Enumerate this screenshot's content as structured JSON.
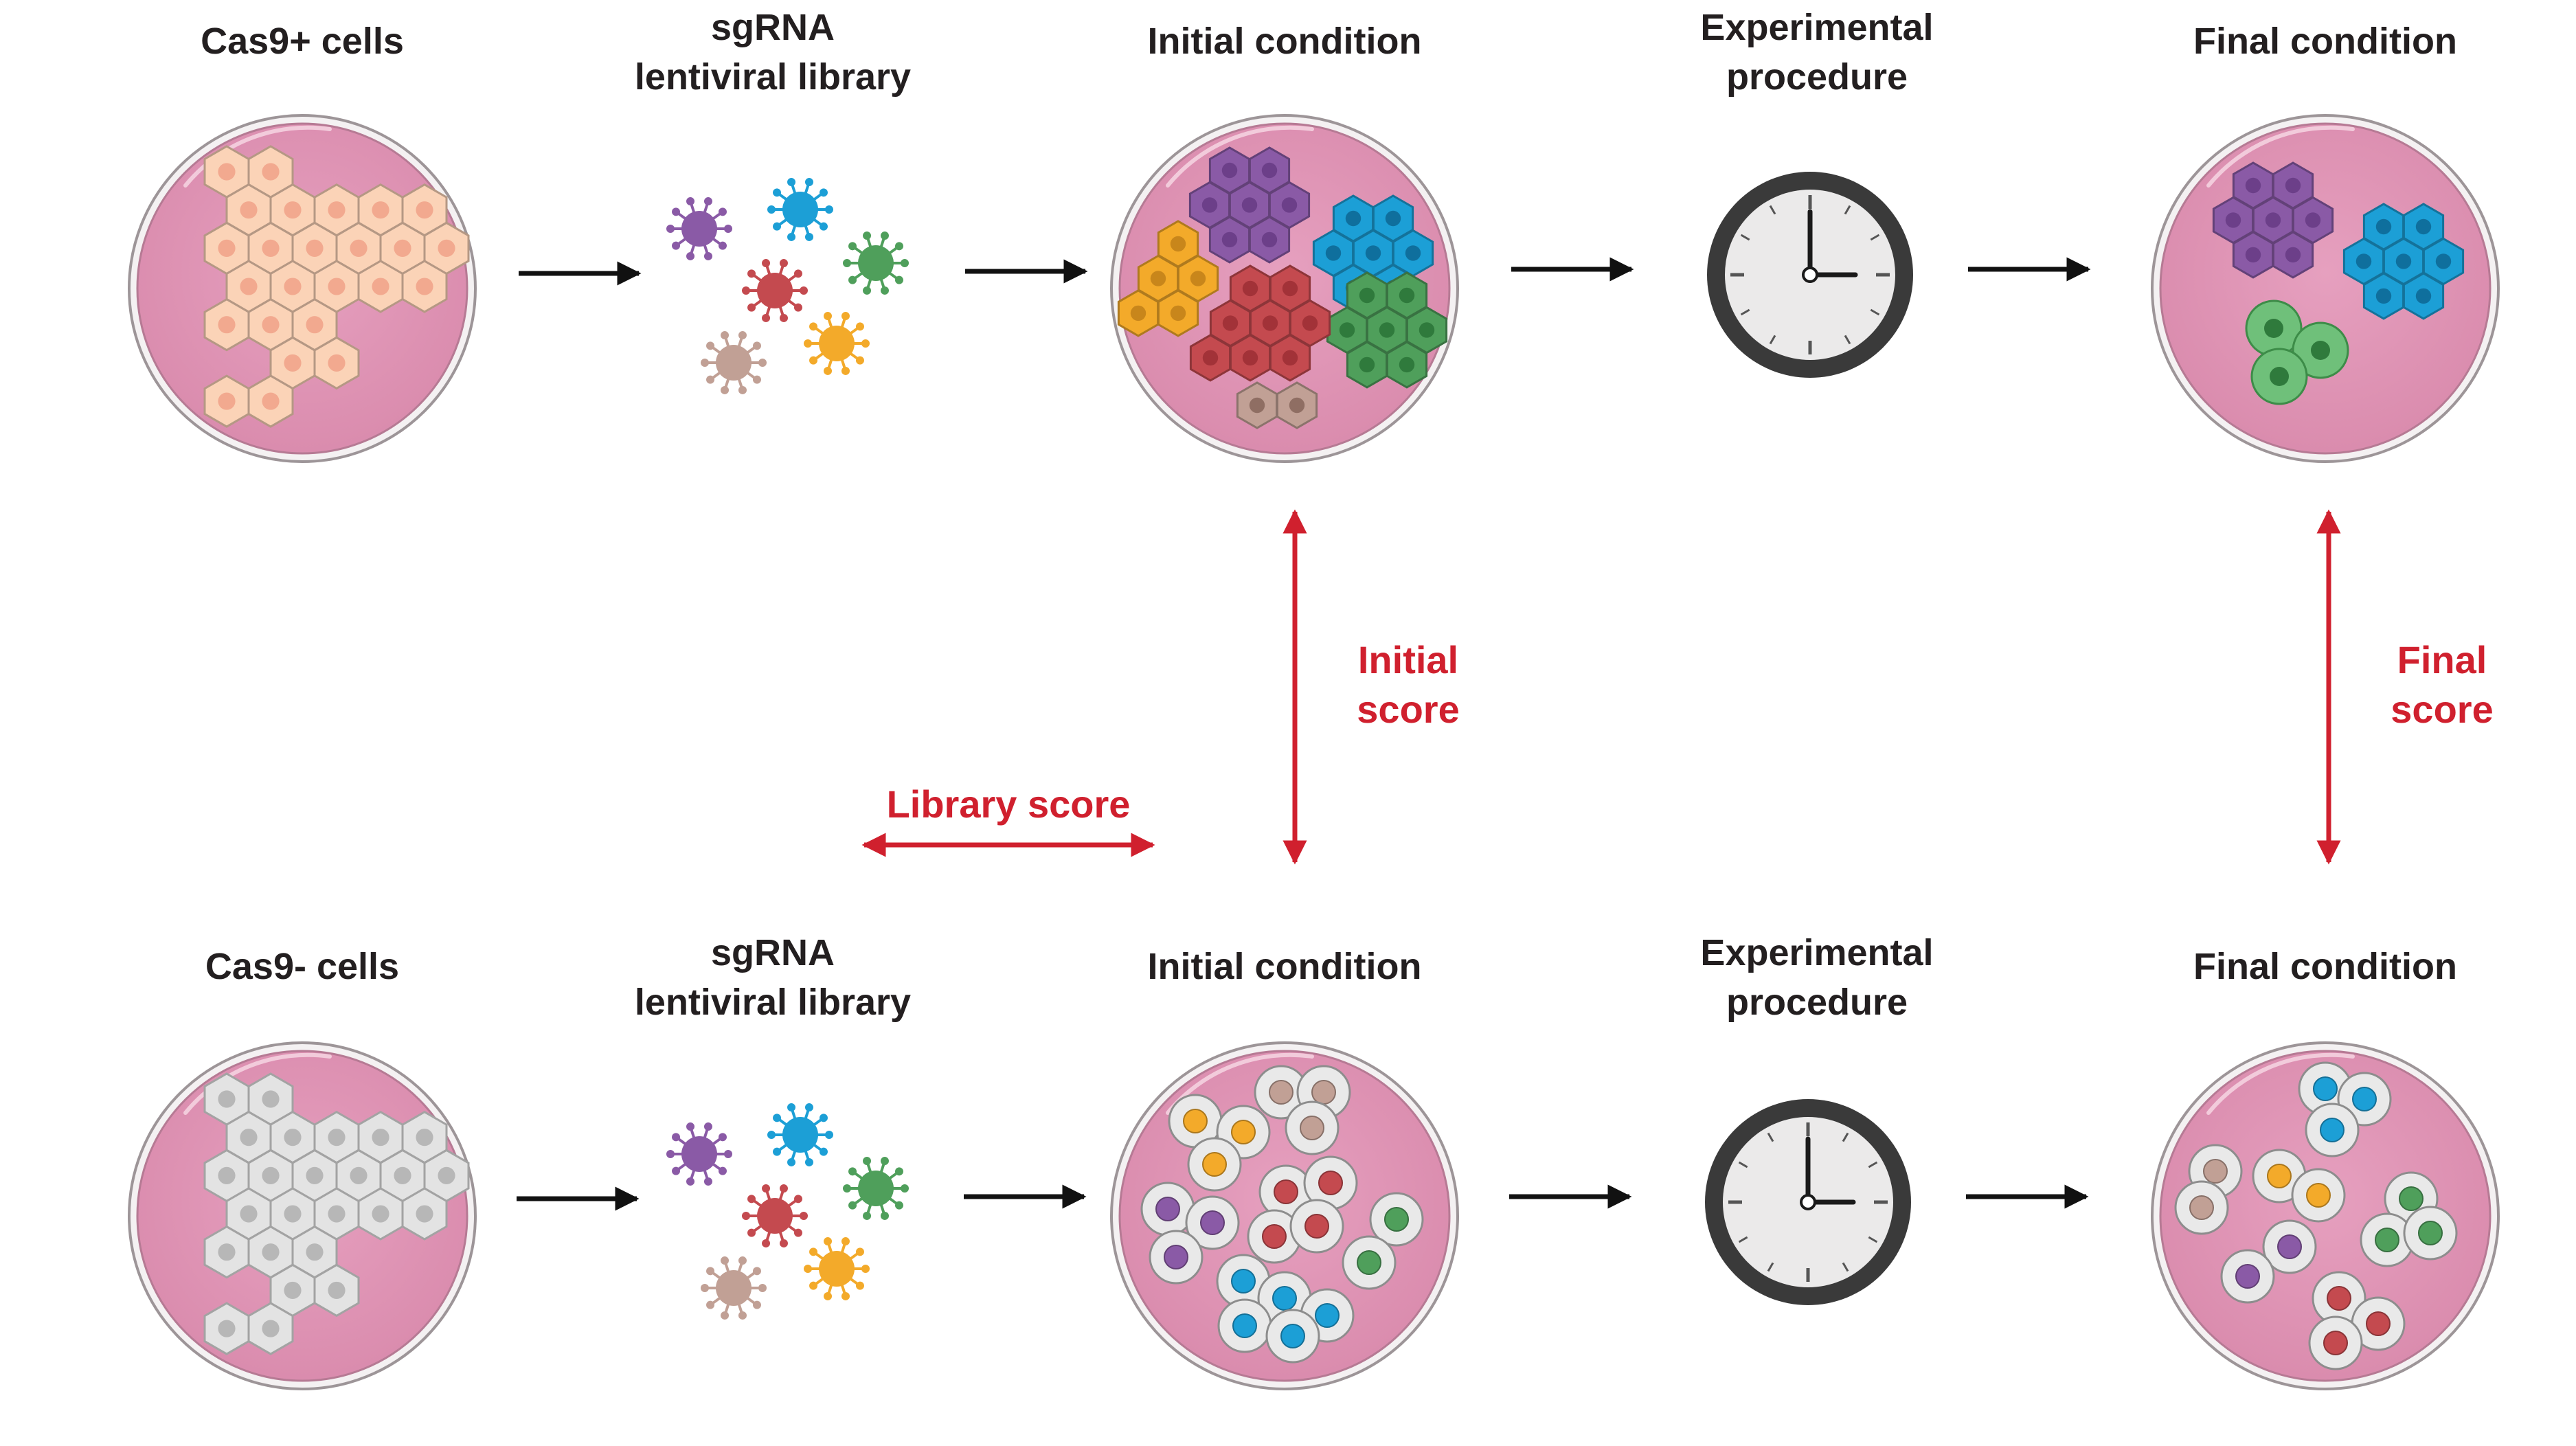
{
  "colors": {
    "dish_fill": "#e194b5",
    "dish_rim": "#b8a8ad",
    "score_arrow": "#d0202e",
    "flow_arrow": "#111111",
    "cas9_pos_cell": "#fbd3b7",
    "cas9_neg_cell": "#e3e3e3",
    "purple": "#8a5aa6",
    "blue": "#1c9fd6",
    "red": "#c44a4f",
    "green": "#4f9f5b",
    "orange": "#f3aa2a",
    "tan": "#c1a095"
  },
  "top_row": {
    "step1": "Cas9+ cells",
    "step2_l1": "sgRNA",
    "step2_l2": "lentiviral library",
    "step3": "Initial condition",
    "step4_l1": "Experimental",
    "step4_l2": "procedure",
    "step5": "Final condition"
  },
  "bottom_row": {
    "step1": "Cas9- cells",
    "step2_l1": "sgRNA",
    "step2_l2": "lentiviral library",
    "step3": "Initial condition",
    "step4_l1": "Experimental",
    "step4_l2": "procedure",
    "step5": "Final condition"
  },
  "scores": {
    "initial_l1": "Initial",
    "initial_l2": "score",
    "final_l1": "Final",
    "final_l2": "score",
    "library": "Library score"
  },
  "icons": {
    "dish": "petri-dish-icon",
    "virus": "lentivirus-icon",
    "clock": "clock-icon",
    "arrow": "arrow-right-icon"
  }
}
